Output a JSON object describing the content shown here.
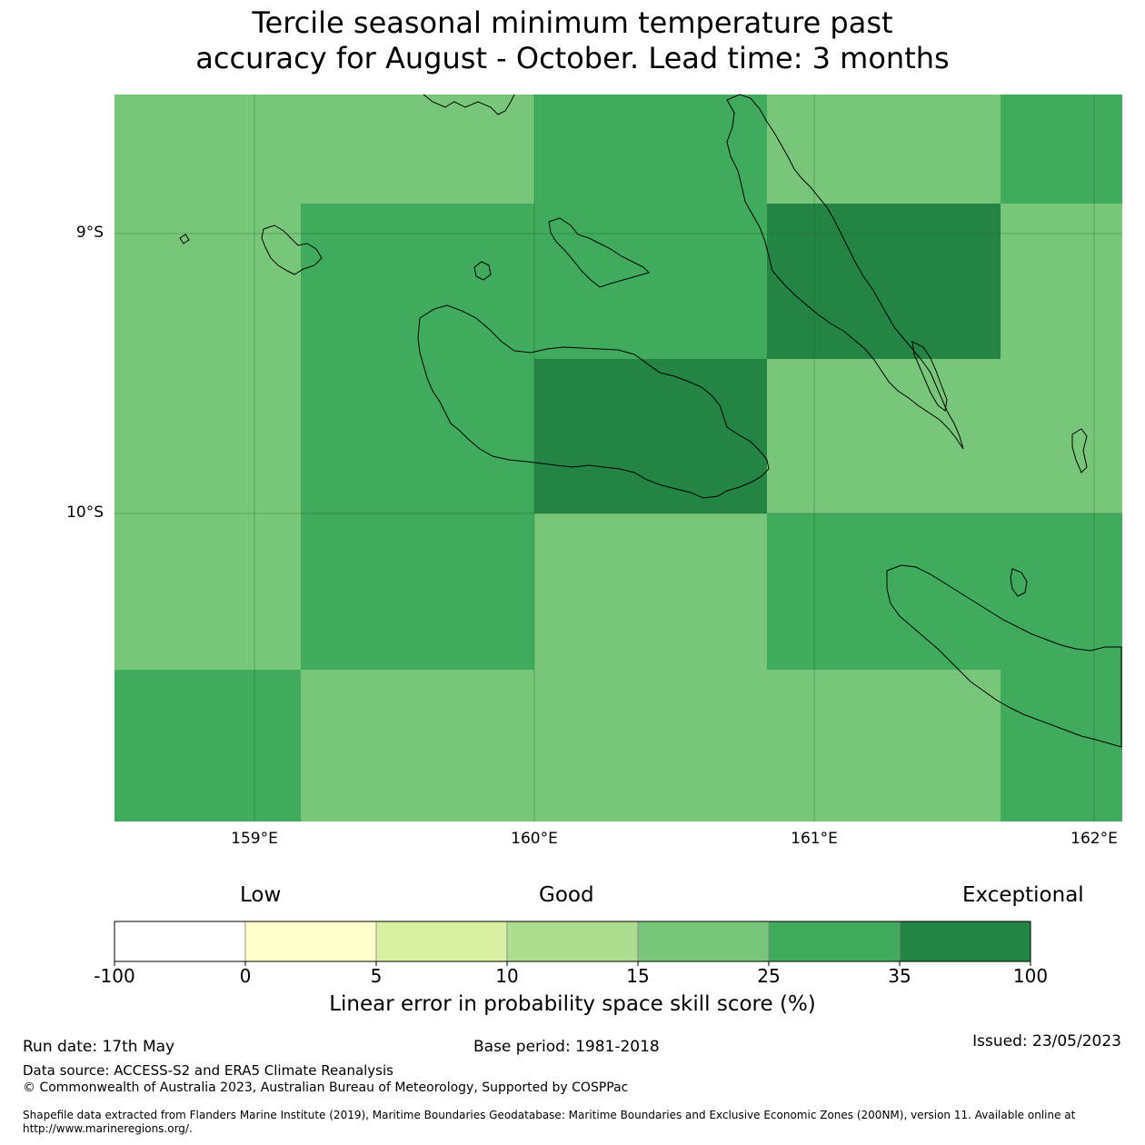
{
  "title": {
    "line1": "Tercile seasonal minimum temperature past",
    "line2": "accuracy for August - October. Lead time: 3 months"
  },
  "map": {
    "lat_labels": [
      "9°S",
      "10°S"
    ],
    "lon_labels": [
      "159°E",
      "160°E",
      "161°E",
      "162°E"
    ],
    "colors": {
      "light": "#78c67a",
      "mid": "#41ab5d",
      "dark": "#238443",
      "coast": "#000000"
    },
    "skill_cells": [
      [
        "light",
        "light",
        "light",
        "mid",
        "mid",
        "light",
        "light",
        "mid"
      ],
      [
        "light",
        "light",
        "mid",
        "mid",
        "mid",
        "dark",
        "dark",
        "light"
      ],
      [
        "light",
        "light",
        "mid",
        "mid",
        "mid",
        "dark",
        "dark",
        "light"
      ],
      [
        "light",
        "light",
        "mid",
        "dark",
        "dark",
        "light",
        "light",
        "light"
      ],
      [
        "light",
        "light",
        "mid",
        "dark",
        "dark",
        "light",
        "light",
        "light"
      ],
      [
        "light",
        "light",
        "mid",
        "light",
        "light",
        "mid",
        "mid",
        "mid"
      ],
      [
        "mid",
        "mid",
        "light",
        "light",
        "light",
        "light",
        "light",
        "mid"
      ],
      [
        "mid",
        "mid",
        "light",
        "light",
        "light",
        "light",
        "light",
        "mid"
      ]
    ]
  },
  "colorbar": {
    "category_labels": {
      "low": "Low",
      "good": "Good",
      "exceptional": "Exceptional"
    },
    "bins": [
      {
        "color": "#ffffff"
      },
      {
        "color": "#ffffcc"
      },
      {
        "color": "#d9f0a3"
      },
      {
        "color": "#addd8e"
      },
      {
        "color": "#78c67a"
      },
      {
        "color": "#41ab5d"
      },
      {
        "color": "#238443"
      }
    ],
    "ticks": [
      "-100",
      "0",
      "5",
      "10",
      "15",
      "25",
      "35",
      "100"
    ],
    "label": "Linear error in probability space skill score (%)"
  },
  "footer": {
    "run_date": "Run date: 17th May",
    "base_period": "Base period: 1981-2018",
    "issued": "Issued: 23/05/2023",
    "data_source": "Data source: ACCESS-S2 and ERA5 Climate Reanalysis",
    "copyright": "© Commonwealth of Australia 2023, Australian Bureau of Meteorology, Supported by COSPPac",
    "shapefile_line1": "Shapefile data extracted from Flanders Marine Institute (2019), Maritime Boundaries Geodatabase: Maritime Boundaries and Exclusive Economic Zones (200NM), version 11. Available online at",
    "shapefile_line2": "http://www.marineregions.org/."
  }
}
